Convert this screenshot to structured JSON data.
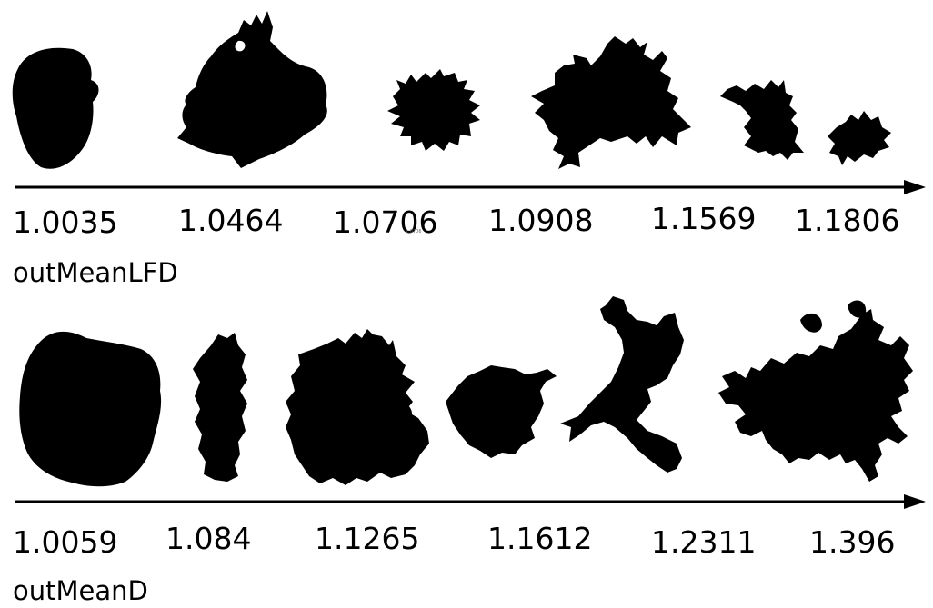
{
  "colors": {
    "shape": "#000000",
    "axis": "#000000",
    "background": "#ffffff"
  },
  "rows": [
    {
      "metric": "outMeanLFD",
      "values": [
        "1.0035",
        "1.0464",
        "1.0706",
        "1.0908",
        "1.1569",
        "1.1806"
      ],
      "shapes": [
        {
          "value": 1.0035,
          "description": "smooth rounded blob"
        },
        {
          "value": 1.0464,
          "description": "lobed blob with notch"
        },
        {
          "value": 1.0706,
          "description": "small spiky blob"
        },
        {
          "value": 1.0908,
          "description": "branched spiky shape"
        },
        {
          "value": 1.1569,
          "description": "small fringed shape"
        },
        {
          "value": 1.1806,
          "description": "tiny spiky shape"
        }
      ]
    },
    {
      "metric": "outMeanD",
      "values": [
        "1.0059",
        "1.084",
        "1.1265",
        "1.1612",
        "1.2311",
        "1.396"
      ],
      "shapes": [
        {
          "value": 1.0059,
          "description": "large rounded blob"
        },
        {
          "value": 1.084,
          "description": "tall narrow blob"
        },
        {
          "value": 1.1265,
          "description": "lobed blob with notch"
        },
        {
          "value": 1.1612,
          "description": "round spiky blob"
        },
        {
          "value": 1.2311,
          "description": "tall branched shape"
        },
        {
          "value": 1.396,
          "description": "large highly branched shape"
        }
      ]
    }
  ],
  "note_tiny": "1.0706"
}
